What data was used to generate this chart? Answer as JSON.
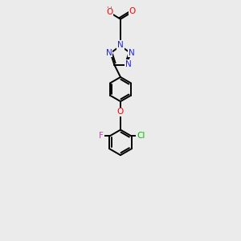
{
  "bg_color": "#ebebeb",
  "bond_color": "#000000",
  "bond_width": 1.4,
  "figsize": [
    3.0,
    3.0
  ],
  "dpi": 100,
  "n_color": "#2020ff",
  "o_color": "#ff0000",
  "cl_color": "#00bb00",
  "f_color": "#cc44bb",
  "h_color": "#777777",
  "font_size": 7.0,
  "xlim": [
    0,
    10
  ],
  "ylim": [
    0,
    14
  ]
}
